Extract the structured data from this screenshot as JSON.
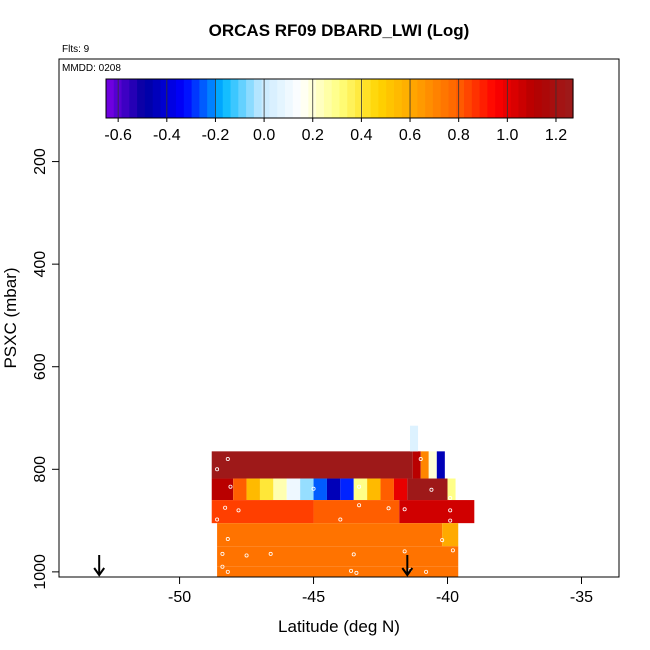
{
  "chart_data": {
    "type": "heatmap",
    "title": "ORCAS RF09 DBARD_LWI (Log)",
    "flights_label": "Flts: 9",
    "date_label": "MMDD: 0208",
    "xlabel": "Latitude (deg N)",
    "ylabel": "PSXC (mbar)",
    "xlim": [
      -54.5,
      -33.6
    ],
    "ylim": [
      1010,
      0
    ],
    "xticks": [
      -50,
      -45,
      -40,
      -35
    ],
    "yticks": [
      200,
      400,
      600,
      800,
      1000
    ],
    "colorbar": {
      "min": -0.65,
      "max": 1.27,
      "ticks": [
        -0.6,
        -0.4,
        -0.2,
        0.0,
        0.2,
        0.4,
        0.6,
        0.8,
        1.0,
        1.2
      ],
      "tick_labels": [
        "-0.6",
        "-0.4",
        "-0.2",
        "0.0",
        "0.2",
        "0.4",
        "0.6",
        "0.8",
        "1.0",
        "1.2"
      ],
      "colors": [
        "#7a00e6",
        "#0000a0",
        "#0000ff",
        "#00b8ff",
        "#c8eaff",
        "#ffffff",
        "#ffff80",
        "#ffd400",
        "#ffa000",
        "#ff6400",
        "#ff0000",
        "#b40000",
        "#9b1c1c"
      ]
    },
    "cells": [
      {
        "x0": -48.8,
        "x1": -41.3,
        "y0": 765,
        "y1": 818,
        "value": 1.25
      },
      {
        "x0": -41.3,
        "x1": -41.0,
        "y0": 765,
        "y1": 818,
        "value": 1.1
      },
      {
        "x0": -41.0,
        "x1": -40.7,
        "y0": 765,
        "y1": 818,
        "value": 0.7
      },
      {
        "x0": -40.7,
        "x1": -40.4,
        "y0": 765,
        "y1": 818,
        "value": 0.2
      },
      {
        "x0": -40.4,
        "x1": -40.1,
        "y0": 765,
        "y1": 818,
        "value": -0.45
      },
      {
        "x0": -41.4,
        "x1": -41.1,
        "y0": 715,
        "y1": 765,
        "value": 0.05
      },
      {
        "x0": -48.8,
        "x1": -48.0,
        "y0": 818,
        "y1": 860,
        "value": 1.1
      },
      {
        "x0": -48.0,
        "x1": -47.5,
        "y0": 818,
        "y1": 860,
        "value": 0.8
      },
      {
        "x0": -47.5,
        "x1": -47.0,
        "y0": 818,
        "y1": 860,
        "value": 0.55
      },
      {
        "x0": -47.0,
        "x1": -46.5,
        "y0": 818,
        "y1": 860,
        "value": 0.4
      },
      {
        "x0": -46.5,
        "x1": -46.0,
        "y0": 818,
        "y1": 860,
        "value": 0.25
      },
      {
        "x0": -46.0,
        "x1": -45.5,
        "y0": 818,
        "y1": 860,
        "value": 0.1
      },
      {
        "x0": -45.5,
        "x1": -45.0,
        "y0": 818,
        "y1": 860,
        "value": -0.05
      },
      {
        "x0": -45.0,
        "x1": -44.5,
        "y0": 818,
        "y1": 860,
        "value": -0.25
      },
      {
        "x0": -44.5,
        "x1": -44.0,
        "y0": 818,
        "y1": 860,
        "value": -0.45
      },
      {
        "x0": -44.0,
        "x1": -43.5,
        "y0": 818,
        "y1": 860,
        "value": -0.3
      },
      {
        "x0": -43.5,
        "x1": -43.0,
        "y0": 818,
        "y1": 860,
        "value": 0.3
      },
      {
        "x0": -43.0,
        "x1": -42.5,
        "y0": 818,
        "y1": 860,
        "value": 0.55
      },
      {
        "x0": -42.5,
        "x1": -42.0,
        "y0": 818,
        "y1": 860,
        "value": 0.8
      },
      {
        "x0": -42.0,
        "x1": -41.5,
        "y0": 818,
        "y1": 860,
        "value": 1.0
      },
      {
        "x0": -41.5,
        "x1": -40.0,
        "y0": 818,
        "y1": 860,
        "value": 1.25
      },
      {
        "x0": -40.0,
        "x1": -39.7,
        "y0": 818,
        "y1": 860,
        "value": 0.3
      },
      {
        "x0": -48.8,
        "x1": -45.0,
        "y0": 860,
        "y1": 905,
        "value": 0.85
      },
      {
        "x0": -45.0,
        "x1": -41.8,
        "y0": 860,
        "y1": 905,
        "value": 0.8
      },
      {
        "x0": -41.8,
        "x1": -39.0,
        "y0": 860,
        "y1": 905,
        "value": 1.05
      },
      {
        "x0": -48.6,
        "x1": -40.2,
        "y0": 905,
        "y1": 950,
        "value": 0.75
      },
      {
        "x0": -40.2,
        "x1": -39.6,
        "y0": 905,
        "y1": 950,
        "value": 0.6
      },
      {
        "x0": -48.6,
        "x1": -39.6,
        "y0": 950,
        "y1": 990,
        "value": 0.75
      },
      {
        "x0": -48.6,
        "x1": -39.6,
        "y0": 990,
        "y1": 1010,
        "value": 0.75
      }
    ],
    "points": [
      {
        "x": -48.2,
        "y": 780
      },
      {
        "x": -48.6,
        "y": 800
      },
      {
        "x": -41.0,
        "y": 780
      },
      {
        "x": -48.1,
        "y": 834
      },
      {
        "x": -45.0,
        "y": 838
      },
      {
        "x": -43.3,
        "y": 834
      },
      {
        "x": -40.6,
        "y": 840
      },
      {
        "x": -39.9,
        "y": 856
      },
      {
        "x": -48.3,
        "y": 875
      },
      {
        "x": -47.8,
        "y": 880
      },
      {
        "x": -42.2,
        "y": 876
      },
      {
        "x": -41.6,
        "y": 878
      },
      {
        "x": -39.9,
        "y": 880
      },
      {
        "x": -43.3,
        "y": 870
      },
      {
        "x": -44.0,
        "y": 898
      },
      {
        "x": -48.6,
        "y": 898
      },
      {
        "x": -39.9,
        "y": 900
      },
      {
        "x": -48.2,
        "y": 936
      },
      {
        "x": -40.2,
        "y": 938
      },
      {
        "x": -48.4,
        "y": 965
      },
      {
        "x": -46.6,
        "y": 965
      },
      {
        "x": -43.5,
        "y": 966
      },
      {
        "x": -41.6,
        "y": 960
      },
      {
        "x": -39.8,
        "y": 958
      },
      {
        "x": -47.5,
        "y": 968
      },
      {
        "x": -48.4,
        "y": 990
      },
      {
        "x": -48.2,
        "y": 1000
      },
      {
        "x": -43.6,
        "y": 998
      },
      {
        "x": -43.4,
        "y": 1002
      },
      {
        "x": -41.4,
        "y": 996
      },
      {
        "x": -40.8,
        "y": 1000
      }
    ],
    "arrows": [
      -53.0,
      -41.5
    ]
  }
}
